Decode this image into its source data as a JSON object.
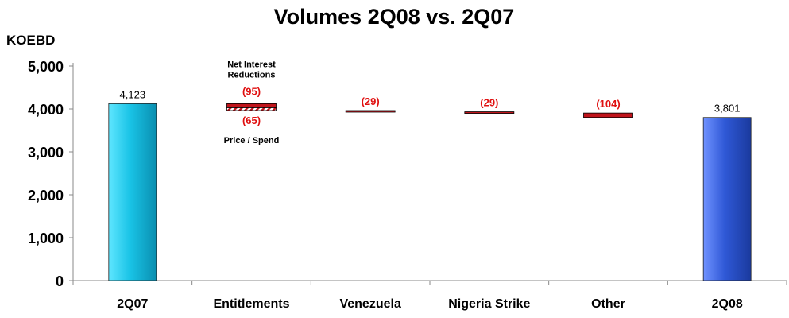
{
  "chart_data": {
    "type": "bar",
    "subtype": "waterfall",
    "title": "Volumes 2Q08 vs. 2Q07",
    "ylabel": "KOEBD",
    "xlabel": "",
    "ylim": [
      0,
      5000
    ],
    "yticks": [
      0,
      1000,
      2000,
      3000,
      4000,
      5000
    ],
    "ytick_labels": [
      "0",
      "1,000",
      "2,000",
      "3,000",
      "4,000",
      "5,000"
    ],
    "grid": false,
    "categories": [
      "2Q07",
      "Entitlements",
      "Venezuela",
      "Nigeria Strike",
      "Other",
      "2Q08"
    ],
    "bars": [
      {
        "category": "2Q07",
        "kind": "total",
        "value": 4123,
        "label": "4,123"
      },
      {
        "category": "Entitlements",
        "kind": "delta",
        "segments": [
          {
            "name": "Net Interest Reductions",
            "value": -95,
            "label": "(95)",
            "start": 4123,
            "end": 4028
          },
          {
            "name": "Price / Spend",
            "value": -65,
            "label": "(65)",
            "start": 4028,
            "end": 3963
          }
        ]
      },
      {
        "category": "Venezuela",
        "kind": "delta",
        "value": -29,
        "label": "(29)",
        "start": 3963,
        "end": 3934
      },
      {
        "category": "Nigeria Strike",
        "kind": "delta",
        "value": -29,
        "label": "(29)",
        "start": 3934,
        "end": 3905
      },
      {
        "category": "Other",
        "kind": "delta",
        "value": -104,
        "label": "(104)",
        "start": 3905,
        "end": 3801
      },
      {
        "category": "2Q08",
        "kind": "total",
        "value": 3801,
        "label": "3,801"
      }
    ],
    "annotations": {
      "entitlements_top": [
        "Net Interest",
        "Reductions"
      ],
      "entitlements_bottom": "Price / Spend"
    },
    "colors": {
      "start_bar": "#19c3e6",
      "end_bar": "#2f58d6",
      "negative": "#c0141b",
      "negative_label": "#e01010",
      "axis": "#888888",
      "text": "#000000"
    }
  }
}
